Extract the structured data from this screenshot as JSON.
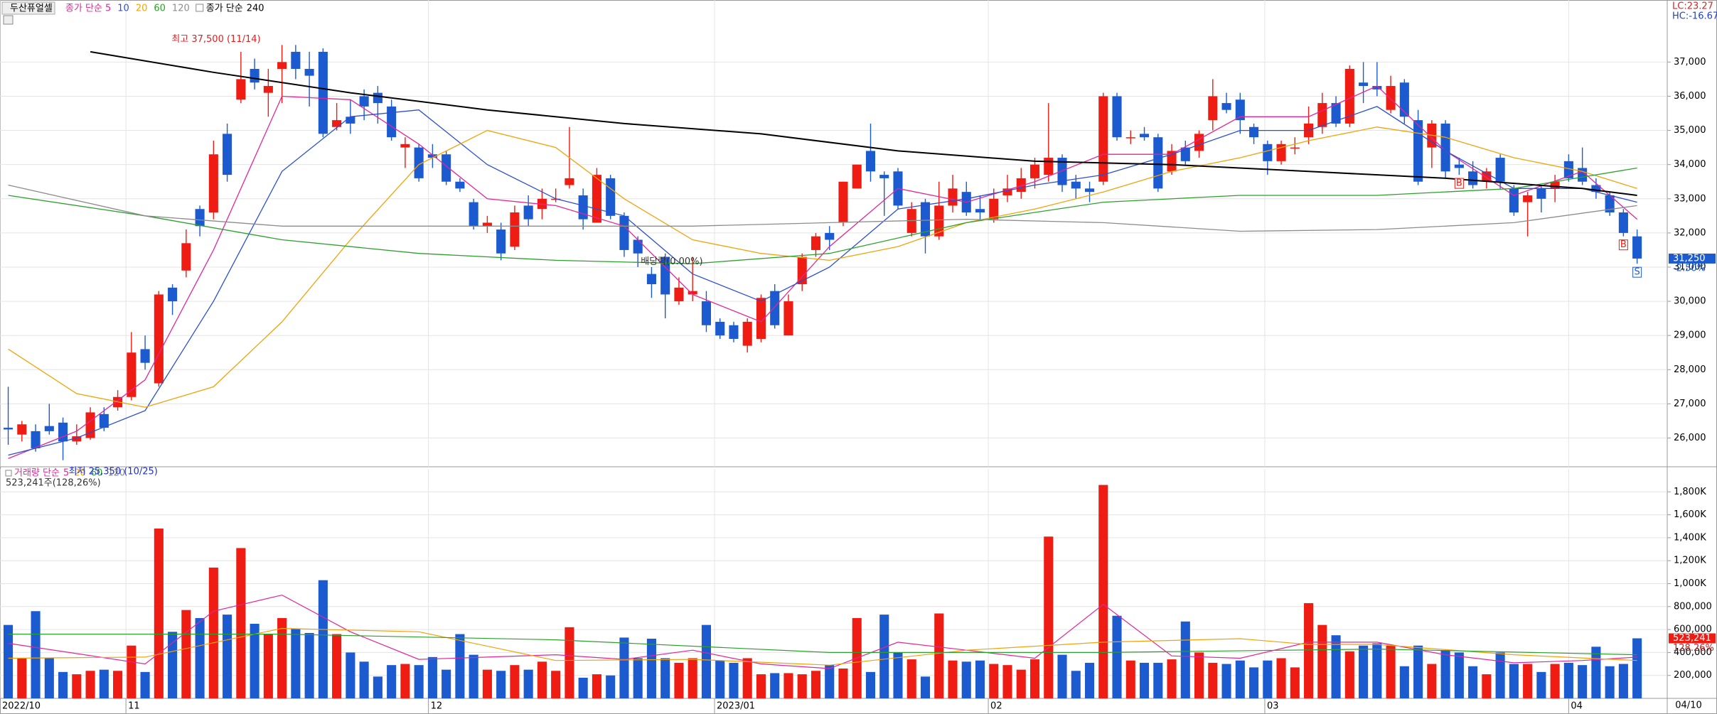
{
  "chart_data": {
    "type": "candlestick",
    "title": "두산퓨얼셀",
    "ma_prefix": "종가 단순",
    "ma_series": [
      {
        "name": "5",
        "color": "#e0269a",
        "x": [
          0,
          5,
          10,
          15,
          20,
          25,
          30,
          35,
          40,
          45,
          50,
          55,
          60,
          65,
          70,
          75,
          80,
          85,
          90,
          95,
          100,
          105,
          110,
          115,
          119
        ],
        "values": [
          25400,
          26200,
          27700,
          31500,
          36000,
          35900,
          34600,
          33000,
          32800,
          32200,
          30200,
          29400,
          31600,
          33300,
          32900,
          33500,
          34300,
          34300,
          35400,
          35400,
          36300,
          34400,
          33100,
          33800,
          32400
        ]
      },
      {
        "name": "10",
        "color": "#2b4fd0",
        "x": [
          0,
          5,
          10,
          15,
          20,
          25,
          30,
          35,
          40,
          45,
          50,
          55,
          60,
          65,
          70,
          75,
          80,
          85,
          90,
          95,
          100,
          105,
          110,
          115,
          119
        ],
        "values": [
          25500,
          26000,
          26800,
          30000,
          33800,
          35400,
          35600,
          34000,
          33000,
          32500,
          30800,
          30000,
          31000,
          32700,
          33000,
          33400,
          33700,
          34300,
          35000,
          35000,
          35700,
          34400,
          33300,
          33300,
          32900
        ]
      },
      {
        "name": "20",
        "color": "#f0a30a",
        "x": [
          0,
          5,
          10,
          15,
          20,
          25,
          30,
          35,
          40,
          45,
          50,
          55,
          60,
          65,
          70,
          75,
          80,
          85,
          90,
          95,
          100,
          105,
          110,
          115,
          119
        ],
        "values": [
          28600,
          27300,
          26900,
          27500,
          29400,
          31800,
          34000,
          35000,
          34500,
          33000,
          31800,
          31400,
          31200,
          31600,
          32300,
          32700,
          33200,
          33800,
          34200,
          34700,
          35100,
          34800,
          34200,
          33800,
          33300
        ]
      },
      {
        "name": "60",
        "color": "#2ca02c",
        "x": [
          0,
          10,
          20,
          30,
          40,
          50,
          60,
          70,
          80,
          90,
          100,
          110,
          119
        ],
        "values": [
          33100,
          32500,
          31800,
          31400,
          31200,
          31100,
          31400,
          32300,
          32900,
          33100,
          33100,
          33300,
          33900
        ]
      },
      {
        "name": "120",
        "color": "#8c8c8c",
        "x": [
          0,
          10,
          20,
          30,
          40,
          50,
          60,
          70,
          80,
          90,
          100,
          110,
          119
        ],
        "values": [
          33400,
          32500,
          32200,
          32200,
          32200,
          32200,
          32300,
          32400,
          32300,
          32050,
          32100,
          32300,
          32800
        ]
      }
    ],
    "ma_long": {
      "name": "240",
      "color": "#000000",
      "x": [
        6,
        15,
        25,
        35,
        45,
        55,
        65,
        75,
        85,
        95,
        105,
        115,
        119
      ],
      "values": [
        37300,
        36700,
        36100,
        35600,
        35200,
        34900,
        34400,
        34100,
        34000,
        33800,
        33600,
        33300,
        33100
      ]
    },
    "up_color": "#ee1c12",
    "down_color": "#1c5ad0",
    "open": [
      26300,
      26100,
      26200,
      26350,
      26450,
      25900,
      26000,
      26700,
      26900,
      27200,
      28600,
      27600,
      30400,
      30900,
      32700,
      32600,
      34900,
      35900,
      36800,
      36100,
      36800,
      37300,
      36800,
      37300,
      35100,
      35400,
      36000,
      36100,
      35700,
      34500,
      34500,
      34300,
      34300,
      33500,
      32900,
      32200,
      32100,
      31600,
      32800,
      32700,
      33000,
      33400,
      33100,
      32300,
      33600,
      32500,
      31800,
      30800,
      31300,
      30000,
      30200,
      30000,
      29400,
      29300,
      28700,
      28900,
      30300,
      29000,
      30500,
      31500,
      32000,
      32300,
      33300,
      34400,
      33700,
      33800,
      32000,
      32900,
      31900,
      32800,
      33200,
      32700,
      32400,
      33100,
      33200,
      33600,
      33700,
      34200,
      33500,
      33300,
      33500,
      36000,
      34800,
      34900,
      34800,
      33800,
      34500,
      34400,
      35300,
      35800,
      35900,
      35100,
      34600,
      34100,
      34500,
      34800,
      35100,
      35800,
      35200,
      36400,
      36300,
      35600,
      36400,
      35300,
      34500,
      35200,
      34000,
      33800,
      33500,
      34200,
      33300,
      32900,
      33300,
      33300,
      34100,
      33900,
      33400,
      33100,
      32600,
      31900
    ],
    "close": [
      26250,
      26400,
      25700,
      26200,
      25900,
      26050,
      26750,
      26300,
      27200,
      28500,
      28200,
      30200,
      30000,
      31700,
      32200,
      34300,
      33700,
      36500,
      36400,
      36300,
      37000,
      36800,
      36600,
      34900,
      35300,
      35200,
      35700,
      35800,
      34800,
      34600,
      33600,
      34200,
      33500,
      33300,
      32200,
      32300,
      31400,
      32600,
      32400,
      33000,
      33000,
      33600,
      32400,
      33700,
      32500,
      31500,
      31400,
      30500,
      30200,
      30400,
      30300,
      29300,
      29000,
      28900,
      29400,
      30100,
      29300,
      30000,
      31300,
      31900,
      31800,
      33500,
      34000,
      33800,
      33600,
      32800,
      32700,
      31900,
      32800,
      33300,
      32600,
      32600,
      33000,
      33300,
      33600,
      34000,
      34200,
      33400,
      33300,
      33200,
      36000,
      34800,
      34800,
      34800,
      33300,
      34400,
      34100,
      34900,
      36000,
      35600,
      35300,
      34800,
      34100,
      34600,
      34500,
      35200,
      35800,
      35200,
      36800,
      36300,
      36200,
      36300,
      35400,
      33500,
      35200,
      33800,
      33900,
      33400,
      33800,
      33500,
      32600,
      33100,
      33000,
      33500,
      33600,
      33500,
      33200,
      32600,
      32000,
      31250
    ],
    "high": [
      27500,
      26500,
      26400,
      27000,
      26600,
      26400,
      26900,
      26900,
      27400,
      29100,
      29000,
      30300,
      30500,
      32100,
      32800,
      34700,
      35200,
      37300,
      37100,
      36800,
      37500,
      37500,
      37300,
      37400,
      35800,
      35900,
      36200,
      36300,
      35900,
      34800,
      34600,
      34600,
      34400,
      33600,
      33000,
      32500,
      32300,
      32800,
      33100,
      33300,
      33300,
      35100,
      33300,
      33900,
      33700,
      32600,
      31900,
      31000,
      31400,
      30700,
      31300,
      30300,
      29500,
      29400,
      29500,
      30200,
      30500,
      30200,
      31400,
      32000,
      32200,
      33500,
      34000,
      35200,
      33800,
      33900,
      32900,
      33000,
      33500,
      33700,
      33500,
      33100,
      33300,
      33700,
      33900,
      34200,
      35800,
      34300,
      33700,
      33500,
      36100,
      36100,
      35000,
      35100,
      34900,
      34600,
      34700,
      35000,
      36500,
      36100,
      36100,
      35200,
      34700,
      34700,
      34800,
      35700,
      36100,
      36000,
      36900,
      37000,
      37000,
      36600,
      36500,
      35600,
      35300,
      35300,
      34200,
      34100,
      33900,
      34300,
      33400,
      33200,
      33400,
      33700,
      34300,
      34500,
      33600,
      33200,
      32700,
      32100
    ],
    "low": [
      25800,
      25900,
      25600,
      26100,
      25350,
      25800,
      25950,
      26200,
      26800,
      27100,
      28000,
      27500,
      29600,
      30700,
      31900,
      32400,
      33500,
      35800,
      36200,
      35400,
      35800,
      36500,
      35700,
      34800,
      35000,
      34900,
      35300,
      35200,
      34700,
      33900,
      33500,
      33900,
      33400,
      33200,
      32100,
      32000,
      31200,
      31500,
      32200,
      32400,
      32900,
      33300,
      32100,
      32300,
      32400,
      31300,
      31000,
      30100,
      29500,
      29900,
      30000,
      29100,
      28900,
      28800,
      28500,
      28800,
      29200,
      29000,
      30300,
      31300,
      31500,
      32200,
      33300,
      33500,
      32500,
      32700,
      31900,
      31400,
      31800,
      32600,
      32500,
      32400,
      32300,
      32900,
      33000,
      33300,
      33500,
      33200,
      33000,
      32900,
      33400,
      34700,
      34600,
      34700,
      33200,
      33700,
      34000,
      34200,
      35000,
      35500,
      34900,
      34600,
      33700,
      34000,
      34300,
      34600,
      34900,
      35100,
      35100,
      35800,
      36000,
      35500,
      35200,
      33400,
      33900,
      33600,
      33700,
      33300,
      33300,
      33300,
      32500,
      31900,
      32600,
      32900,
      33500,
      33400,
      33000,
      32500,
      31900,
      31100
    ],
    "volume": [
      640000,
      350000,
      760000,
      350000,
      230000,
      210000,
      240000,
      250000,
      240000,
      460000,
      230000,
      1480000,
      580000,
      770000,
      700000,
      1140000,
      730000,
      1310000,
      650000,
      560000,
      700000,
      610000,
      570000,
      1030000,
      560000,
      400000,
      320000,
      190000,
      290000,
      300000,
      290000,
      360000,
      250000,
      560000,
      380000,
      250000,
      240000,
      290000,
      250000,
      320000,
      240000,
      620000,
      180000,
      210000,
      200000,
      530000,
      350000,
      520000,
      350000,
      310000,
      350000,
      640000,
      330000,
      310000,
      350000,
      210000,
      220000,
      220000,
      210000,
      240000,
      290000,
      260000,
      700000,
      230000,
      730000,
      400000,
      340000,
      190000,
      740000,
      330000,
      320000,
      330000,
      300000,
      290000,
      250000,
      340000,
      1410000,
      380000,
      240000,
      310000,
      1860000,
      720000,
      330000,
      310000,
      310000,
      340000,
      670000,
      400000,
      310000,
      300000,
      330000,
      270000,
      330000,
      350000,
      270000,
      830000,
      640000,
      550000,
      410000,
      460000,
      480000,
      460000,
      280000,
      460000,
      300000,
      420000,
      400000,
      280000,
      210000,
      400000,
      300000,
      300000,
      230000,
      300000,
      310000,
      290000,
      450000,
      280000,
      300000,
      523241
    ],
    "volume_title": "거래량 단순",
    "volume_ma": [
      {
        "name": "5",
        "color": "#e0269a",
        "x": [
          0,
          10,
          15,
          20,
          25,
          30,
          35,
          40,
          45,
          50,
          55,
          60,
          65,
          70,
          75,
          80,
          85,
          90,
          95,
          100,
          105,
          110,
          115,
          119
        ],
        "values": [
          480000,
          300000,
          760000,
          900000,
          580000,
          340000,
          360000,
          380000,
          340000,
          420000,
          300000,
          260000,
          490000,
          420000,
          350000,
          820000,
          370000,
          350000,
          490000,
          490000,
          380000,
          310000,
          330000,
          360000
        ]
      },
      {
        "name": "20",
        "color": "#f0a30a",
        "x": [
          0,
          10,
          20,
          30,
          40,
          50,
          60,
          70,
          80,
          90,
          95,
          100,
          110,
          119
        ],
        "values": [
          350000,
          360000,
          610000,
          580000,
          330000,
          340000,
          290000,
          420000,
          490000,
          520000,
          470000,
          470000,
          380000,
          330000
        ]
      },
      {
        "name": "60",
        "color": "#2ca02c",
        "x": [
          0,
          20,
          40,
          60,
          80,
          100,
          119
        ],
        "values": [
          560000,
          560000,
          510000,
          400000,
          400000,
          430000,
          380000
        ]
      }
    ],
    "volume_extra_legend": "120",
    "volume_summary": "523,241주(128,26%)",
    "volume_last_label": "523,241",
    "volume_ratio_label": "128.26%",
    "last_price_label": "31,250",
    "last_change_label": "-2.50%",
    "lc_label": "LC:23.27",
    "hc_label": "HC:-16.67",
    "annotations": [
      {
        "x": 20,
        "text": "최고 37,500 (11/14)"
      },
      {
        "x": 4,
        "text": "최저 25,350 (10/25)"
      },
      {
        "x": 49,
        "text": "배당락(0.00%)"
      }
    ],
    "signals": [
      {
        "x": 106,
        "label": "B"
      },
      {
        "x": 118,
        "label": "B"
      },
      {
        "x": 119,
        "label": "S"
      }
    ],
    "xlim": [
      -0.6,
      121.2
    ],
    "xticks": [
      {
        "value": -0.6,
        "label": "2022/10"
      },
      {
        "value": 8.6,
        "label": "11"
      },
      {
        "value": 30.7,
        "label": "12"
      },
      {
        "value": 51.6,
        "label": "2023/01"
      },
      {
        "value": 71.6,
        "label": "02"
      },
      {
        "value": 91.8,
        "label": "03"
      },
      {
        "value": 114.0,
        "label": "04"
      }
    ],
    "last_date": "04/10",
    "ylim": [
      25200,
      38400
    ],
    "yticks": [
      {
        "value": 26000,
        "label": "26,000"
      },
      {
        "value": 27000,
        "label": "27,000"
      },
      {
        "value": 28000,
        "label": "28,000"
      },
      {
        "value": 29000,
        "label": "29,000"
      },
      {
        "value": 30000,
        "label": "30,000"
      },
      {
        "value": 31000,
        "label": "31,000"
      },
      {
        "value": 32000,
        "label": "32,000"
      },
      {
        "value": 33000,
        "label": "33,000"
      },
      {
        "value": 34000,
        "label": "34,000"
      },
      {
        "value": 35000,
        "label": "35,000"
      },
      {
        "value": 36000,
        "label": "36,000"
      },
      {
        "value": 37000,
        "label": "37,000"
      }
    ],
    "vlim": [
      0,
      2000000
    ],
    "vticks": [
      {
        "value": 200000,
        "label": "200,000"
      },
      {
        "value": 400000,
        "label": "400,000"
      },
      {
        "value": 600000,
        "label": "600,000"
      },
      {
        "value": 800000,
        "label": "800,000"
      },
      {
        "value": 1000000,
        "label": "1,000K"
      },
      {
        "value": 1200000,
        "label": "1,200K"
      },
      {
        "value": 1400000,
        "label": "1,400K"
      },
      {
        "value": 1600000,
        "label": "1,600K"
      },
      {
        "value": 1800000,
        "label": "1,800K"
      }
    ],
    "grid": true
  }
}
